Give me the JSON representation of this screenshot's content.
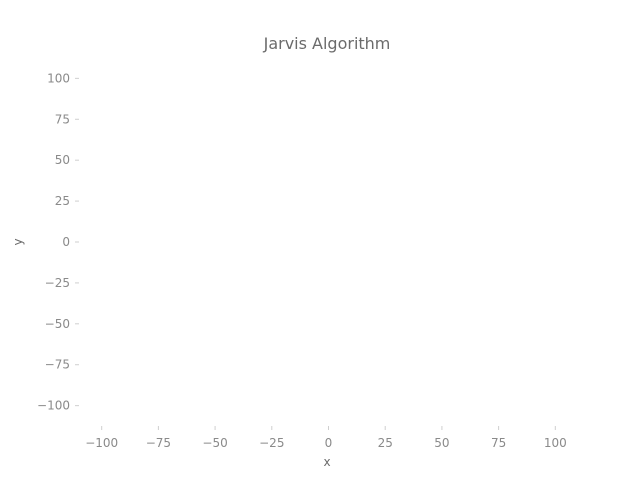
{
  "chart_data": {
    "type": "scatter",
    "title": "Jarvis Algorithm",
    "xlabel": "x",
    "ylabel": "y",
    "xlim": [
      -110,
      110
    ],
    "ylim": [
      -110,
      110
    ],
    "xticks": [
      -100,
      -75,
      -50,
      -25,
      0,
      25,
      50,
      75,
      100
    ],
    "yticks": [
      100,
      75,
      50,
      25,
      0,
      -25,
      -50,
      -75,
      -100
    ],
    "xtick_labels": [
      "−100",
      "−75",
      "−50",
      "−25",
      "0",
      "25",
      "50",
      "75",
      "100"
    ],
    "ytick_labels": [
      "100",
      "75",
      "50",
      "25",
      "0",
      "−25",
      "−50",
      "−75",
      "−100"
    ],
    "series": [],
    "grid": false,
    "axis_color": "#cfcfcf",
    "text_color": "#6b6b6b"
  }
}
